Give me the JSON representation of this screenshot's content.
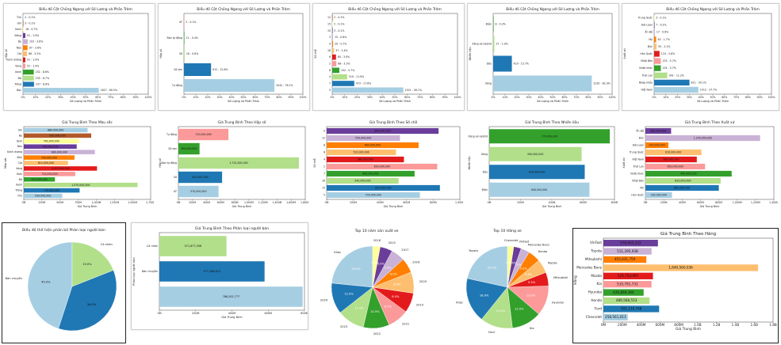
{
  "palette": [
    "#a6cee3",
    "#1f78b4",
    "#b2df8a",
    "#33a02c",
    "#fb9a99",
    "#e31a1c",
    "#fdbf6f",
    "#ff7f00",
    "#cab2d6",
    "#6a3d9a",
    "#ffff99",
    "#b15928"
  ],
  "chart_data": [
    {
      "id": "c1",
      "type": "bar",
      "orientation": "horizontal",
      "title": "Biểu đồ Cột Chồng Ngang với Số Lượng và Phần Trăm",
      "xlabel": "Số Lượng và Phần Trăm",
      "ylabel": "Hộp số",
      "xlim": [
        0,
        100
      ],
      "xticks": [
        "0%",
        "10%",
        "20%",
        "30%",
        "40%",
        "50%",
        "60%",
        "70%",
        "80%",
        "90%",
        "100%"
      ],
      "categories": [
        "Bạc",
        "Trắng",
        "Đỏ",
        "Xanh",
        "Vàng",
        "Xanh dương",
        "Cát",
        "Nâu",
        "Be",
        "Đồng",
        "Xanh",
        "Ghi",
        "Tím"
      ],
      "values": [
        60.5,
        8.8,
        8.7,
        8.6,
        1.9,
        1.9,
        3.2,
        3.6,
        3.8,
        1.9,
        0.7,
        0.1,
        0.1
      ],
      "labels": [
        "1627 - 60.5%",
        "237 - 8.8%",
        "235 - 8.7%",
        "232 - 8.6%",
        "52 - 1.9%",
        "51 - 1.9%",
        "86 - 3.2%",
        "97 - 3.6%",
        "103 - 3.8%",
        "51 - 1.9%",
        "18 - 0.7%",
        "3 - 0.1%",
        "2 - 0.1%"
      ]
    },
    {
      "id": "c2",
      "type": "bar",
      "orientation": "horizontal",
      "title": "Biểu đồ Cột Chồng Ngang với Số Lượng và Phần Trăm",
      "xlabel": "Số Lượng và Phần Trăm",
      "ylabel": "Hộp số",
      "xlim": [
        0,
        100
      ],
      "xticks": [
        "0%",
        "10%",
        "20%",
        "30%",
        "40%",
        "50%",
        "60%",
        "70%",
        "80%",
        "90%",
        "100%"
      ],
      "categories": [
        "Tự động",
        "Số sàn",
        "Số",
        "Bán tự động",
        "AT"
      ],
      "values": [
        76.1,
        22.8,
        0.6,
        0.4,
        0.1
      ],
      "labels": [
        "2042 - 76.1%",
        "612 - 22.8%",
        "16 - 0.6%",
        "11 - 0.4%",
        "3 - 0.1%"
      ]
    },
    {
      "id": "c3",
      "type": "bar",
      "orientation": "horizontal",
      "title": "Biểu đồ Cột Chồng Ngang với Số Lượng và Phần Trăm",
      "xlabel": "Số Lượng và Phần Trăm",
      "ylabel": "Số chỗ",
      "xlim": [
        0,
        100
      ],
      "xticks": [
        "0%",
        "10%",
        "20%",
        "30%",
        "40%",
        "50%",
        "60%",
        "70%",
        "80%",
        "90%",
        "100%"
      ],
      "categories": [
        "5",
        "7",
        "4",
        "8",
        "2",
        "6",
        "16",
        "9",
        "3",
        "10",
        "15",
        "12"
      ],
      "values": [
        56.7,
        17.6,
        11.9,
        5.7,
        3.3,
        3.0,
        1.4,
        0.7,
        0.6,
        0.1,
        0.1,
        0.1
      ],
      "labels": [
        "1521 - 56.7%",
        "473 - 17.6%",
        "319 - 11.9%",
        "152 - 5.7%",
        "88 - 3.3%",
        "80 - 3.0%",
        "37 - 1.4%",
        "20 - 0.7%",
        "15 - 0.6%",
        "3 - 0.1%",
        "2 - 0.1%",
        "2 - 0.1%"
      ]
    },
    {
      "id": "c4",
      "type": "bar",
      "orientation": "horizontal",
      "title": "Biểu đồ Cột Chồng Ngang với Số Lượng và Phần Trăm",
      "xlabel": "Số Lượng và Phần Trăm",
      "ylabel": "Nhiên liệu",
      "xlim": [
        0,
        100
      ],
      "xticks": [
        "0%",
        "10%",
        "20%",
        "30%",
        "40%",
        "50%",
        "60%",
        "70%",
        "80%",
        "90%",
        "100%"
      ],
      "categories": [
        "Xăng",
        "Dầu",
        "Xăng và Hybrid",
        "Điện"
      ],
      "values": [
        82.9,
        15.7,
        1.0,
        0.3
      ],
      "labels": [
        "2230 - 82.9%",
        "423 - 15.7%",
        "27 - 1.0%",
        "8 - 0.3%"
      ]
    },
    {
      "id": "c5",
      "type": "bar",
      "orientation": "horizontal",
      "title": "Biểu đồ Cột Chồng Ngang với Số Lượng và Phần Trăm",
      "xlabel": "Số Lượng và Phần Trăm",
      "ylabel": "Xuất xứ",
      "xlim": [
        0,
        100
      ],
      "xticks": [
        "0%",
        "10%",
        "20%",
        "30%",
        "40%",
        "50%",
        "60%",
        "70%",
        "80%",
        "90%",
        "100%"
      ],
      "categories": [
        "Việt Nam",
        "Nhập khẩu",
        "Thái Lan",
        "Nước khác",
        "Nhật Bản",
        "Hàn Quốc",
        "Đức",
        "Mỹ",
        "Ấn Độ",
        "Đài Loan",
        "Trung Quốc"
      ],
      "values": [
        37.7,
        30.1,
        11.2,
        5.7,
        5.7,
        4.6,
        2.1,
        1.7,
        0.6,
        0.2,
        0.1
      ],
      "labels": [
        "1012 - 37.7%",
        "811 - 30.1%",
        "301 - 11.2%",
        "154 - 5.7%",
        "153 - 5.7%",
        "124 - 4.6%",
        "55 - 2.1%",
        "45 - 1.7%",
        "17 - 0.6%",
        "7 - 0.2%",
        "3 - 0.1%"
      ]
    },
    {
      "id": "c6",
      "type": "bar",
      "orientation": "horizontal",
      "title": "Giá Trung Bình Theo Màu sắc",
      "xlabel": "Giá Trung Bình",
      "ylabel": "Màu sắc",
      "xlim": [
        0,
        1750
      ],
      "xticks": [
        "0M",
        "250M",
        "500M",
        "750M",
        "1,000M",
        "1,250M",
        "1,500M",
        "1,750M"
      ],
      "categories": [
        "Tím",
        "Trắng",
        "Xanh",
        "Đỏ",
        "Xám",
        "Vàng",
        "Cát",
        "Đen",
        "Xanh dương",
        "Nâu",
        "Kem",
        "Be",
        "Ghi"
      ],
      "values": [
        530,
        770,
        1570,
        430,
        710,
        1010,
        610,
        700,
        980,
        730,
        760,
        930,
        880
      ],
      "labels": [
        "530,000,000",
        "770,000,000",
        "1,570,000,000",
        "430,000,000",
        "710,000,000",
        "1,010,000,000",
        "610,000,000",
        "700,000,000",
        "980,000,000",
        "730,000,000",
        "760,000,000",
        "930,000,000",
        "880,000,000"
      ]
    },
    {
      "id": "c7",
      "type": "bar",
      "orientation": "horizontal",
      "title": "Giá Trung Bình Theo Hộp số",
      "xlabel": "Giá Trung Bình",
      "ylabel": "Hộp số",
      "xlim": [
        0,
        1800
      ],
      "xticks": [
        "0M",
        "200M",
        "400M",
        "600M",
        "800M",
        "1,000M",
        "1,200M",
        "1,400M",
        "1,600M",
        "1,800M"
      ],
      "categories": [
        "AT",
        "Số",
        "Bán tự động",
        "Số sàn",
        "Tự động"
      ],
      "values": [
        570,
        620,
        1710,
        300,
        710
      ],
      "labels": [
        "570,000,000",
        "620,000,000",
        "1,710,000,000",
        "300,000,000",
        "710,000,000"
      ]
    },
    {
      "id": "c8",
      "type": "bar",
      "orientation": "horizontal",
      "title": "Giá Trung Bình Theo Số chỗ",
      "xlabel": "Giá Trung Bình",
      "ylabel": "Số chỗ",
      "xlim": [
        0,
        1000
      ],
      "xticks": [
        "0M",
        "200M",
        "400M",
        "600M",
        "800M",
        "1,000M"
      ],
      "categories": [
        "5",
        "15",
        "16",
        "7",
        "2",
        "4",
        "8",
        "6",
        "12",
        "9"
      ],
      "values": [
        700,
        850,
        540,
        660,
        830,
        580,
        520,
        690,
        550,
        840
      ],
      "labels": [
        "700,000,000",
        "850,000,000",
        "540,000,000",
        "660,000,000",
        "830,000,000",
        "580,000,000",
        "520,000,000",
        "690,000,000",
        "550,000,000",
        "840,000,000"
      ]
    },
    {
      "id": "c9",
      "type": "bar",
      "orientation": "horizontal",
      "title": "Giá Trung Bình Theo Nhiên liệu",
      "xlabel": "Giá Trung Bình",
      "ylabel": "Nhiên liệu",
      "xlim": [
        0,
        800
      ],
      "xticks": [
        "0M",
        "200M",
        "400M",
        "600M",
        "800M"
      ],
      "categories": [
        "Điện",
        "Dầu",
        "Xăng",
        "Xăng và Hybrid"
      ],
      "values": [
        640,
        610,
        590,
        770
      ],
      "labels": [
        "640,000,000",
        "610,000,000",
        "590,000,000",
        "770,000,000"
      ]
    },
    {
      "id": "c10",
      "type": "bar",
      "orientation": "horizontal",
      "title": "Giá Trung Bình Theo Xuất xứ",
      "xlabel": "Giá Trung Bình",
      "ylabel": "Xuất xứ",
      "xlim": [
        0,
        1400
      ],
      "xticks": [
        "0M",
        "200M",
        "400M",
        "600M",
        "800M",
        "1,000M",
        "1,200M",
        "1,400M"
      ],
      "categories": [
        "Hàn Quốc",
        "Mỹ",
        "Nhật Bản",
        "Nước khác",
        "Thái Lan",
        "Việt Nam",
        "Trung Quốc",
        "Đài Loan",
        "Đức",
        "Ấn Độ"
      ],
      "values": [
        290,
        800,
        820,
        940,
        650,
        560,
        610,
        250,
        1250,
        280
      ],
      "labels": [
        "290,000,000",
        "800,000,000",
        "820,000,000",
        "940,000,000",
        "650,000,000",
        "560,000,000",
        "610,000,000",
        "250,000,000",
        "1,250,000,000",
        "280,000,000"
      ]
    },
    {
      "id": "c11",
      "type": "pie",
      "title": "Biểu đồ thể hiện phần bố Phân loại người bán",
      "categories": [
        "Bán chuyên",
        "Cá nhân",
        "Đại lý"
      ],
      "values": [
        45.0,
        36.0,
        19.0
      ],
      "labels": [
        "45.0%",
        "36.0%",
        "19.0%"
      ],
      "colors_idx": [
        0,
        1,
        2
      ],
      "display_labels": [
        "Bán chuyên",
        "",
        "Cá nhân"
      ]
    },
    {
      "id": "c12",
      "type": "bar",
      "orientation": "horizontal",
      "title": "Giá Trung Bình Theo Phân loại người bán",
      "xlabel": "Giá Trung Bình",
      "ylabel": "Phân loại người bán",
      "xlim": [
        0,
        800
      ],
      "xticks": [
        "0M",
        "200M",
        "400M",
        "600M",
        "800M"
      ],
      "categories": [
        "Đại lý",
        "Bán chuyên",
        "Cá nhân"
      ],
      "values": [
        790,
        580,
        370
      ],
      "labels": [
        "786,202,777",
        "577,186,413",
        "371,877,036"
      ],
      "ytick_labels": [
        "",
        "Bán chuyên",
        "Cá nhân"
      ]
    },
    {
      "id": "c13",
      "type": "pie",
      "title": "Top 10 năm sản xuất xe",
      "categories": [
        "Khác",
        "2024",
        "2023",
        "2022",
        "2021",
        "2019",
        "2020",
        "2016",
        "2017",
        "2015",
        "2018"
      ],
      "values": [
        24.0,
        12.5,
        11.0,
        10.5,
        8.5,
        8.0,
        8.5,
        6.0,
        5.5,
        5.0,
        3.0
      ],
      "labels": [
        "24.0%",
        "12.5%",
        "11.0%",
        "10.5%",
        "8.5%",
        "8.0%",
        "8.5%",
        "6.0%",
        "5.5%",
        "5.0%",
        "3.0%"
      ]
    },
    {
      "id": "c14",
      "type": "pie",
      "title": "Top 10 Hãng xe",
      "categories": [
        "Toyota",
        "Khác",
        "Ford",
        "Kia",
        "Hyundai",
        "Mitsubishi",
        "Mazda",
        "Honda",
        "Mercedes Benz",
        "VinFast",
        "Chevrolet"
      ],
      "values": [
        22.0,
        18.0,
        13.0,
        12.0,
        12.0,
        5.5,
        5.5,
        5.0,
        3.5,
        3.0,
        2.5
      ],
      "labels": [
        "22.0%",
        "18.0%",
        "13.0%",
        "12.0%",
        "12.0%",
        "5.5%",
        "5.5%",
        "5.0%",
        "3.5%",
        "3.0%",
        "2.5%"
      ]
    },
    {
      "id": "c15",
      "type": "bar",
      "orientation": "horizontal",
      "title": "Giá Trung Bình Theo Hãng",
      "xlabel": "Giá Trung Bình",
      "ylabel": "Hãng",
      "xlim": [
        0,
        1800
      ],
      "xticks": [
        "0M",
        "200M",
        "400M",
        "600M",
        "800M",
        "1.0B",
        "1.2B",
        "1.4B",
        "1.6B",
        "1.8B"
      ],
      "categories": [
        "Chevrolet",
        "Ford",
        "Honda",
        "Hyundai",
        "Kia",
        "Mazda",
        "Mercedes Benz",
        "Mitsubishi",
        "Toyota",
        "VinFast"
      ],
      "values": [
        258.6,
        591.1,
        489.6,
        426.9,
        510.8,
        525.8,
        1640.6,
        455.6,
        511.4,
        578.6
      ],
      "labels": [
        "258,561,013",
        "591,130,748",
        "489,568,553",
        "426,869,364",
        "510,791,731",
        "525,754,987",
        "1,640,560,036",
        "455,631,759",
        "511,395,938",
        "578,603,222"
      ]
    }
  ]
}
